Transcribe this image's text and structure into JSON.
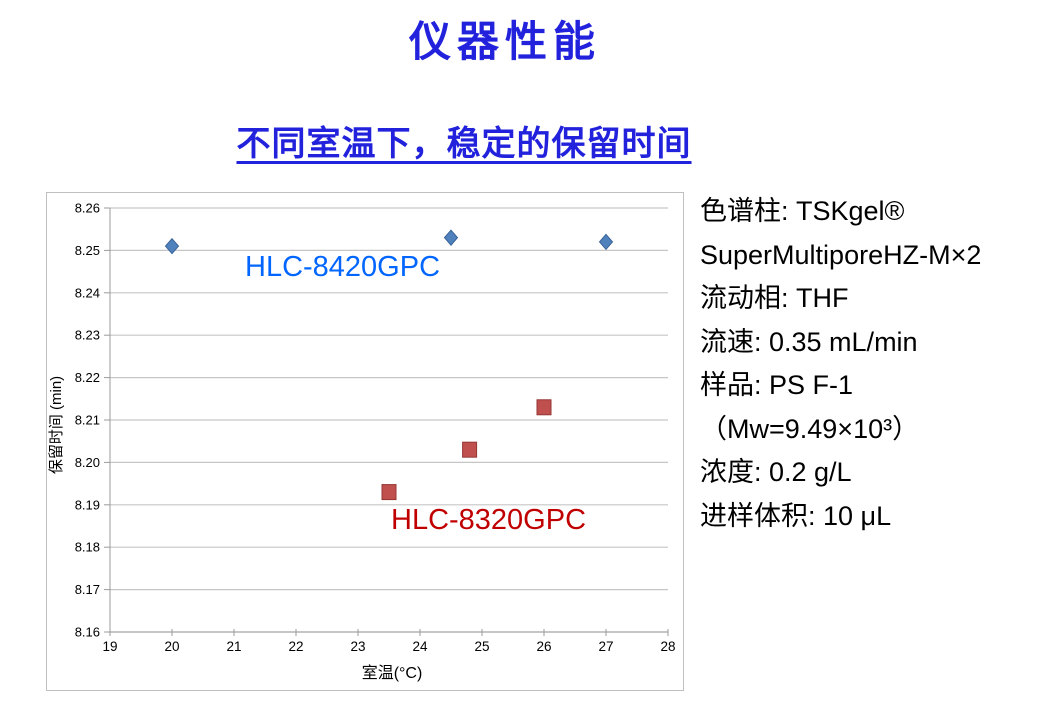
{
  "page": {
    "title": "仪器性能",
    "subtitle": "不同室温下，稳定的保留时间"
  },
  "colors": {
    "heading_blue": "#2222DD",
    "gridline": "#C6C6C6",
    "axis_line": "#9B9B9B",
    "axis_text": "#000000",
    "chart_border": "#C0C0C0",
    "series1_marker_fill": "#4F81BD",
    "series1_marker_stroke": "#3A6398",
    "series2_marker_fill": "#C0504D",
    "series2_marker_stroke": "#953735"
  },
  "chart_data": {
    "type": "scatter",
    "title": "",
    "xlabel": "室温(°C)",
    "ylabel": "保留时间 (min)",
    "xlim": [
      19,
      28
    ],
    "ylim": [
      8.16,
      8.26
    ],
    "grid": true,
    "legend_position": "none",
    "x_ticks": [
      19,
      20,
      21,
      22,
      23,
      24,
      25,
      26,
      27,
      28
    ],
    "y_tick_labels": [
      "8.16",
      "8.17",
      "8.18",
      "8.19",
      "8.20",
      "8.21",
      "8.22",
      "8.23",
      "8.24",
      "8.25",
      "8.26"
    ],
    "series": [
      {
        "name": "HLC-8420GPC",
        "marker": "diamond",
        "marker_color": "#4F81BD",
        "label_color": "#0066FF",
        "points": [
          [
            20,
            8.251
          ],
          [
            24.5,
            8.253
          ],
          [
            27,
            8.252
          ]
        ]
      },
      {
        "name": "HLC-8320GPC",
        "marker": "square",
        "marker_color": "#C0504D",
        "label_color": "#C00000",
        "points": [
          [
            23.5,
            8.193
          ],
          [
            24.8,
            8.203
          ],
          [
            26,
            8.213
          ]
        ]
      }
    ]
  },
  "info_panel": {
    "lines": [
      "色谱柱: TSKgel®",
      "SuperMultiporeHZ-M×2",
      "流动相: THF",
      "流速: 0.35 mL/min",
      "样品: PS F-1",
      "（Mw=9.49×10³）",
      "浓度: 0.2 g/L",
      "进样体积: 10 μL"
    ]
  }
}
